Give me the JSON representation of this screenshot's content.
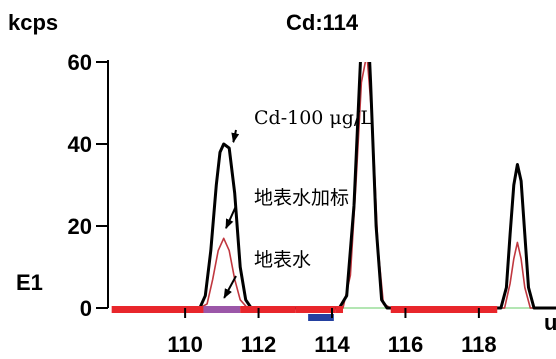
{
  "chart_data": {
    "type": "line",
    "title": "Cd:114",
    "ylabel": "kcps",
    "side_label": "E1",
    "x_unit_label": "u",
    "xlim": [
      107.9,
      120.1
    ],
    "ylim": [
      0,
      60
    ],
    "xticks": [
      {
        "value": 110,
        "label": "110"
      },
      {
        "value": 112,
        "label": "112"
      },
      {
        "value": 114,
        "label": "114"
      },
      {
        "value": 116,
        "label": "116"
      },
      {
        "value": 118,
        "label": "118"
      }
    ],
    "yticks": [
      {
        "value": 0,
        "label": "0"
      },
      {
        "value": 20,
        "label": "20"
      },
      {
        "value": 40,
        "label": "40"
      },
      {
        "value": 60,
        "label": "60"
      }
    ],
    "series": [
      {
        "name": "Cd-100 μg/L",
        "color": "#000000",
        "points": [
          [
            108.5,
            0
          ],
          [
            110.4,
            0
          ],
          [
            110.55,
            3
          ],
          [
            110.7,
            14
          ],
          [
            110.85,
            30
          ],
          [
            110.95,
            38
          ],
          [
            111.05,
            40
          ],
          [
            111.2,
            39
          ],
          [
            111.35,
            28
          ],
          [
            111.5,
            10
          ],
          [
            111.65,
            2
          ],
          [
            111.8,
            0
          ],
          [
            114.2,
            0
          ],
          [
            114.4,
            3
          ],
          [
            114.6,
            25
          ],
          [
            114.75,
            55
          ],
          [
            114.85,
            75
          ],
          [
            114.95,
            75
          ],
          [
            115.05,
            55
          ],
          [
            115.2,
            20
          ],
          [
            115.35,
            2
          ],
          [
            115.5,
            0
          ],
          [
            118.6,
            0
          ],
          [
            118.75,
            5
          ],
          [
            118.85,
            18
          ],
          [
            118.95,
            30
          ],
          [
            119.05,
            35
          ],
          [
            119.15,
            31
          ],
          [
            119.25,
            18
          ],
          [
            119.35,
            5
          ],
          [
            119.5,
            0
          ],
          [
            120.1,
            0
          ]
        ]
      },
      {
        "name": "地表水加标",
        "color": "#c0373f",
        "points": [
          [
            108.5,
            0
          ],
          [
            110.4,
            0
          ],
          [
            110.6,
            1
          ],
          [
            110.75,
            7
          ],
          [
            110.9,
            14
          ],
          [
            111.05,
            17
          ],
          [
            111.2,
            14
          ],
          [
            111.35,
            7
          ],
          [
            111.5,
            2
          ],
          [
            111.7,
            0
          ],
          [
            114.3,
            0
          ],
          [
            114.5,
            8
          ],
          [
            114.65,
            30
          ],
          [
            114.8,
            55
          ],
          [
            114.95,
            62
          ],
          [
            115.1,
            45
          ],
          [
            115.25,
            15
          ],
          [
            115.4,
            1
          ],
          [
            115.6,
            0
          ],
          [
            118.7,
            0
          ],
          [
            118.85,
            6
          ],
          [
            118.95,
            12
          ],
          [
            119.05,
            16
          ],
          [
            119.15,
            12
          ],
          [
            119.25,
            5
          ],
          [
            119.4,
            0
          ],
          [
            120.1,
            0
          ]
        ]
      },
      {
        "name": "地表水",
        "color": "#b3e6b3",
        "points": [
          [
            108.5,
            0
          ],
          [
            120.1,
            0
          ]
        ]
      }
    ],
    "integration_bars": [
      {
        "x_start": 108.0,
        "x_end": 110.5,
        "color": "#e8262b"
      },
      {
        "x_start": 110.5,
        "x_end": 111.5,
        "color": "#9b57a8"
      },
      {
        "x_start": 111.5,
        "x_end": 113.0,
        "color": "#e8262b"
      },
      {
        "x_start": 113.0,
        "x_end": 114.1,
        "color": "#e8262b"
      },
      {
        "x_start": 114.1,
        "x_end": 114.3,
        "color": "#e8262b"
      },
      {
        "x_start": 115.6,
        "x_end": 118.5,
        "color": "#e8262b"
      }
    ],
    "extra_markers": [
      {
        "x_start": 113.35,
        "x_end": 114.05,
        "color": "#2340a0"
      }
    ],
    "annotations": [
      {
        "text": "Cd-100 μg/L",
        "target": [
          111.15,
          39
        ],
        "anchor": "label-1"
      },
      {
        "text": "地表水加标",
        "target": [
          110.95,
          18
        ],
        "anchor": "label-2"
      },
      {
        "text": "地表水",
        "target": [
          110.9,
          1
        ],
        "anchor": "label-3"
      }
    ]
  }
}
